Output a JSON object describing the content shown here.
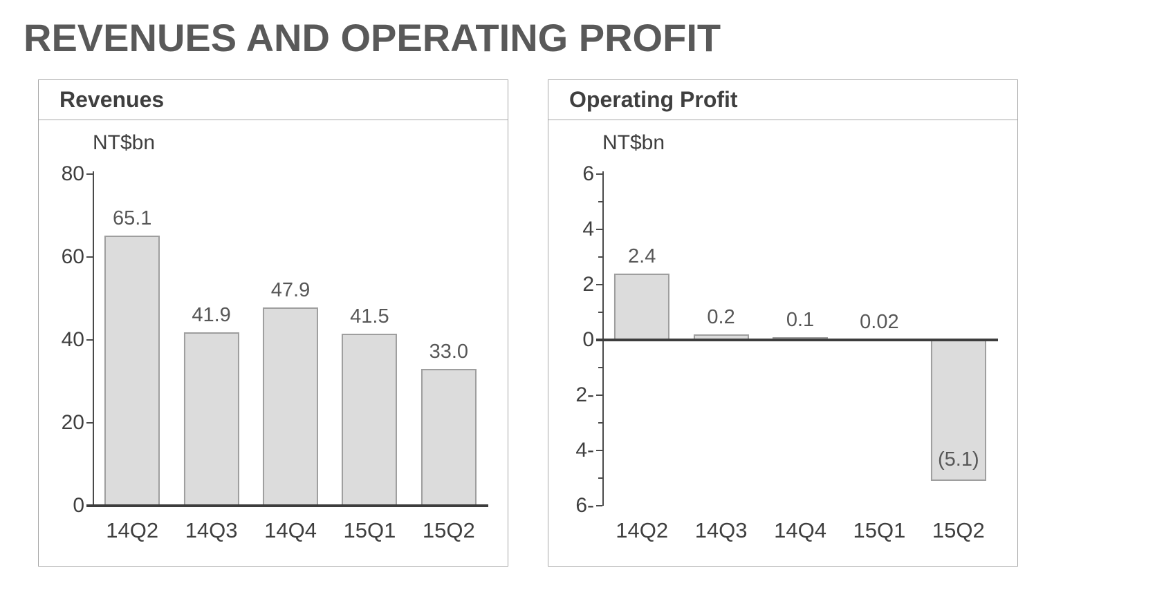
{
  "page_title": "REVENUES AND OPERATING PROFIT",
  "colors": {
    "background": "#ffffff",
    "title_text": "#595959",
    "heading_text": "#3f3f3f",
    "axis_text": "#3f3f3f",
    "value_label_text": "#575757",
    "bar_fill": "#dcdcdc",
    "bar_border": "#9e9e9e",
    "axis_line": "#4a4a4a",
    "zero_line": "#3d3d3d",
    "panel_border": "#a6a6a6"
  },
  "chart_data": [
    {
      "type": "bar",
      "title": "Revenues",
      "unit": "NT$bn",
      "categories": [
        "14Q2",
        "14Q3",
        "14Q4",
        "15Q1",
        "15Q2"
      ],
      "values": [
        65.1,
        41.9,
        47.9,
        41.5,
        33.0
      ],
      "value_labels": [
        "65.1",
        "41.9",
        "47.9",
        "41.5",
        "33.0"
      ],
      "ylim": [
        0,
        80
      ],
      "ytick_values": [
        80,
        60,
        40,
        20,
        0
      ],
      "ytick_labels": [
        "80",
        "60",
        "40",
        "20",
        "0"
      ],
      "ytick_minor_values": [],
      "grid": false,
      "legend": false
    },
    {
      "type": "bar",
      "title": "Operating Profit",
      "unit": "NT$bn",
      "categories": [
        "14Q2",
        "14Q3",
        "14Q4",
        "15Q1",
        "15Q2"
      ],
      "values": [
        2.4,
        0.2,
        0.1,
        0.02,
        -5.1
      ],
      "value_labels": [
        "2.4",
        "0.2",
        "0.1",
        "0.02",
        "(5.1)"
      ],
      "ylim": [
        -6,
        6
      ],
      "ytick_values": [
        6,
        4,
        2,
        0,
        -2,
        -4,
        -6
      ],
      "ytick_labels": [
        "6",
        "4",
        "2",
        "0",
        "2-",
        "4-",
        "6-"
      ],
      "ytick_minor_values": [
        5,
        3,
        1,
        -1,
        -3,
        -5
      ],
      "grid": false,
      "legend": false
    }
  ]
}
